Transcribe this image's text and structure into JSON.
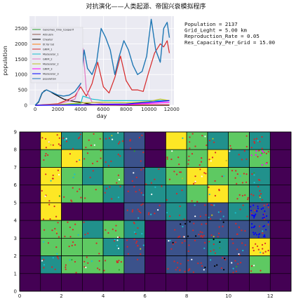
{
  "title": "对抗演化——人类起源、帝国兴衰模拟程序",
  "info_lines": [
    "Population = 2137",
    "Grid_Leght = 5.00 km",
    "Reproduction_Rate = 0.05",
    "Res_Capacity_Per_Grid = 15.00"
  ],
  "chart_data": [
    {
      "type": "line",
      "xlabel": "day",
      "ylabel": "population",
      "xlim": [
        -500,
        12200
      ],
      "ylim": [
        0,
        2900
      ],
      "xticks": [
        0,
        2000,
        4000,
        6000,
        8000,
        10000,
        12000
      ],
      "yticks": [
        0,
        500,
        1000,
        1500,
        2000,
        2500
      ],
      "grid": true,
      "legend": "upper-left",
      "series": [
        {
          "name": "Genomes_Only_Cooperif",
          "color": "#2ca02c",
          "x": [
            0,
            800,
            1500,
            2200,
            3000,
            4000,
            5000,
            6000,
            7000,
            8000,
            9000,
            10000,
            11000,
            11800
          ],
          "values": [
            0,
            10,
            20,
            20,
            15,
            10,
            10,
            10,
            10,
            10,
            10,
            10,
            10,
            10
          ]
        },
        {
          "name": "Altruism",
          "color": "#8c564b",
          "x": [
            0,
            800,
            1500,
            2200,
            3000,
            4000,
            5000,
            6000,
            7000,
            8000,
            9000,
            10000,
            11000,
            11800
          ],
          "values": [
            0,
            5,
            10,
            10,
            10,
            5,
            5,
            5,
            5,
            5,
            5,
            5,
            5,
            5
          ]
        },
        {
          "name": "Cheater",
          "color": "#000000",
          "x": [
            0,
            300,
            600,
            800,
            1000,
            1300,
            1600,
            2000,
            2500,
            3000,
            3500,
            4000,
            4500,
            5000,
            5500,
            6000,
            8000,
            10000,
            11800
          ],
          "values": [
            0,
            100,
            380,
            470,
            500,
            450,
            380,
            300,
            200,
            150,
            120,
            100,
            60,
            30,
            15,
            5,
            0,
            0,
            0
          ]
        },
        {
          "name": "tit for tat",
          "color": "#ff7f0e",
          "x": [
            0,
            2000,
            4000,
            5000,
            6000,
            8000,
            10000,
            11800
          ],
          "values": [
            0,
            10,
            20,
            30,
            20,
            20,
            20,
            20
          ]
        },
        {
          "name": "GRIM_1",
          "color": "#d62728",
          "x": [
            0,
            2000,
            3000,
            3500,
            4000,
            4500,
            5000,
            5500,
            6000,
            6500,
            7000,
            7500,
            8000,
            8500,
            9000,
            9500,
            10000,
            10500,
            11000,
            11300,
            11600,
            11800
          ],
          "values": [
            0,
            50,
            200,
            300,
            600,
            300,
            700,
            1400,
            600,
            400,
            900,
            1600,
            800,
            500,
            500,
            450,
            1100,
            1700,
            2000,
            1900,
            2100,
            1700
          ]
        },
        {
          "name": "Moderator_1",
          "color": "#17becf",
          "x": [
            0,
            2000,
            4000,
            4200,
            5000,
            6000,
            7000,
            8000,
            9000,
            10000,
            11000,
            11800
          ],
          "values": [
            0,
            20,
            50,
            300,
            200,
            150,
            150,
            150,
            150,
            150,
            150,
            150
          ]
        },
        {
          "name": "GRIM_2",
          "color": "#e377c2",
          "x": [
            0,
            2000,
            3500,
            4000,
            4200,
            4500,
            5000,
            6000,
            8000,
            10000,
            11800
          ],
          "values": [
            0,
            30,
            200,
            700,
            1850,
            500,
            100,
            50,
            30,
            30,
            30
          ]
        },
        {
          "name": "Moderator_2",
          "color": "#bcbd22",
          "x": [
            0,
            2000,
            4000,
            6000,
            8000,
            10000,
            11000,
            11800
          ],
          "values": [
            0,
            20,
            80,
            100,
            80,
            120,
            200,
            150
          ]
        },
        {
          "name": "GRIM_3",
          "color": "#ff00ff",
          "x": [
            0,
            4000,
            6000,
            8000,
            10000,
            11800
          ],
          "values": [
            0,
            10,
            20,
            20,
            60,
            100
          ]
        },
        {
          "name": "Moderator_3",
          "color": "#0000ff",
          "x": [
            0,
            4000,
            6000,
            8000,
            10000,
            11800
          ],
          "values": [
            0,
            10,
            30,
            40,
            100,
            150
          ]
        },
        {
          "name": "population",
          "color": "#1f77b4",
          "x": [
            0,
            300,
            600,
            1000,
            1500,
            2000,
            2500,
            3000,
            3500,
            4000,
            4300,
            4600,
            5000,
            5400,
            5800,
            6200,
            6600,
            7000,
            7400,
            7800,
            8200,
            8600,
            9000,
            9400,
            9800,
            10200,
            10600,
            11000,
            11300,
            11600,
            11800
          ],
          "values": [
            0,
            120,
            400,
            500,
            420,
            330,
            300,
            330,
            450,
            700,
            1800,
            1200,
            1000,
            1400,
            2500,
            2200,
            1800,
            1000,
            1600,
            2100,
            1800,
            1300,
            1000,
            1100,
            1600,
            2800,
            1800,
            1400,
            2500,
            2700,
            2200
          ]
        }
      ]
    },
    {
      "type": "heatmap",
      "xlim": [
        0,
        13
      ],
      "ylim": [
        0,
        9
      ],
      "xticks": [
        0,
        2,
        4,
        6,
        8,
        10,
        12
      ],
      "yticks": [
        0,
        1,
        2,
        3,
        4,
        5,
        6,
        7,
        8,
        9
      ],
      "background": "#440154",
      "palette": [
        "#440154",
        "#3b528b",
        "#21918c",
        "#5ec962",
        "#fde725"
      ],
      "cells": [
        [
          1,
          8,
          4
        ],
        [
          2,
          8,
          2
        ],
        [
          3,
          8,
          3
        ],
        [
          4,
          8,
          2
        ],
        [
          5,
          8,
          1
        ],
        [
          7,
          8,
          4
        ],
        [
          8,
          8,
          3
        ],
        [
          9,
          8,
          2
        ],
        [
          10,
          8,
          3
        ],
        [
          11,
          8,
          2
        ],
        [
          1,
          7,
          3
        ],
        [
          2,
          7,
          4
        ],
        [
          3,
          7,
          3
        ],
        [
          4,
          7,
          2
        ],
        [
          5,
          7,
          1
        ],
        [
          7,
          7,
          3
        ],
        [
          8,
          7,
          3
        ],
        [
          9,
          7,
          4
        ],
        [
          10,
          7,
          2
        ],
        [
          11,
          7,
          3
        ],
        [
          1,
          6,
          4
        ],
        [
          2,
          6,
          3
        ],
        [
          3,
          6,
          2
        ],
        [
          4,
          6,
          3
        ],
        [
          5,
          6,
          1
        ],
        [
          6,
          6,
          2
        ],
        [
          7,
          6,
          3
        ],
        [
          8,
          6,
          4
        ],
        [
          9,
          6,
          3
        ],
        [
          10,
          6,
          3
        ],
        [
          11,
          6,
          2
        ],
        [
          1,
          5,
          4
        ],
        [
          2,
          5,
          3
        ],
        [
          3,
          5,
          3
        ],
        [
          4,
          5,
          2
        ],
        [
          5,
          5,
          1
        ],
        [
          6,
          5,
          2
        ],
        [
          7,
          5,
          2
        ],
        [
          8,
          5,
          3
        ],
        [
          9,
          5,
          4
        ],
        [
          10,
          5,
          3
        ],
        [
          11,
          5,
          2
        ],
        [
          1,
          4,
          4
        ],
        [
          5,
          4,
          1
        ],
        [
          6,
          4,
          1
        ],
        [
          7,
          4,
          2
        ],
        [
          8,
          4,
          1
        ],
        [
          9,
          4,
          1
        ],
        [
          10,
          4,
          2
        ],
        [
          11,
          4,
          1
        ],
        [
          1,
          3,
          3
        ],
        [
          2,
          3,
          3
        ],
        [
          3,
          3,
          2
        ],
        [
          4,
          3,
          3
        ],
        [
          5,
          3,
          2
        ],
        [
          7,
          3,
          1
        ],
        [
          8,
          3,
          1
        ],
        [
          9,
          3,
          1
        ],
        [
          10,
          3,
          1
        ],
        [
          11,
          3,
          1
        ],
        [
          1,
          2,
          3
        ],
        [
          2,
          2,
          3
        ],
        [
          3,
          2,
          3
        ],
        [
          4,
          2,
          2
        ],
        [
          5,
          2,
          1
        ],
        [
          7,
          2,
          1
        ],
        [
          8,
          2,
          1
        ],
        [
          9,
          2,
          2
        ],
        [
          10,
          2,
          1
        ],
        [
          11,
          2,
          4
        ],
        [
          1,
          1,
          2
        ],
        [
          2,
          1,
          3
        ],
        [
          3,
          1,
          3
        ],
        [
          4,
          1,
          3
        ],
        [
          5,
          1,
          1
        ],
        [
          7,
          1,
          1
        ],
        [
          8,
          1,
          1
        ],
        [
          9,
          1,
          1
        ],
        [
          10,
          1,
          1
        ],
        [
          11,
          1,
          3
        ]
      ],
      "agents": [
        {
          "color": "#d62728",
          "count": 380
        },
        {
          "color": "#17becf",
          "count": 45
        },
        {
          "color": "#ffffff",
          "count": 30
        },
        {
          "color": "#000000",
          "count": 14
        },
        {
          "color": "#0000ff",
          "count": 40
        },
        {
          "color": "#ff00ff",
          "count": 8
        },
        {
          "color": "#bcbd22",
          "count": 10
        },
        {
          "color": "#2ca02c",
          "count": 8
        }
      ]
    }
  ]
}
